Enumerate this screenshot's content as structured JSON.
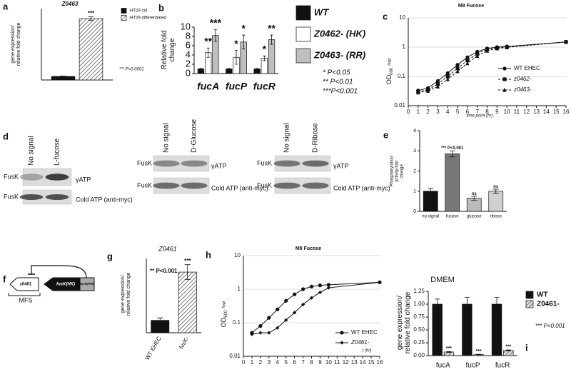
{
  "chart_data": [
    {
      "panel": "a",
      "type": "bar",
      "title": "Z0463",
      "ylabel": [
        "gene expression/",
        "relative fold change"
      ],
      "categories": [
        null
      ],
      "series": [
        {
          "name": "HT29 ctrl",
          "color": "#111111",
          "values": [
            1
          ],
          "errors": [
            0.1
          ]
        },
        {
          "name": "HT29 differentiated",
          "color": "#ffffff",
          "hatch": true,
          "values": [
            17.2
          ],
          "errors": [
            0.5
          ]
        }
      ],
      "ylim": [
        0,
        20
      ],
      "annotations": [
        {
          "text": "***",
          "category": 0,
          "series": 1
        }
      ],
      "notes": [
        "*** P<0.0001"
      ]
    },
    {
      "panel": "b",
      "type": "bar",
      "ylabel": [
        "Relative fold",
        "change"
      ],
      "categories": [
        "fucA",
        "fucP",
        "fucR"
      ],
      "series": [
        {
          "name": "WT",
          "color": "#111111",
          "values": [
            1,
            1,
            1
          ],
          "errors": [
            0.1,
            0.1,
            0.1
          ]
        },
        {
          "name": "Z0462- (HK)",
          "color": "#ffffff",
          "values": [
            4.5,
            3.5,
            3.3
          ],
          "errors": [
            1,
            1.5,
            0.5
          ]
        },
        {
          "name": "Z0463- (RR)",
          "color": "#bfbfbf",
          "values": [
            8.2,
            6.8,
            7.3
          ],
          "errors": [
            1.3,
            1.5,
            1
          ]
        }
      ],
      "ylim": [
        0,
        10
      ],
      "yticks": [
        0,
        2,
        4,
        6,
        8,
        10
      ],
      "annotations": [
        {
          "text": "**",
          "category": 0,
          "series": 1
        },
        {
          "text": "***",
          "category": 0,
          "series": 2
        },
        {
          "text": "*",
          "category": 1,
          "series": 1
        },
        {
          "text": "*",
          "category": 1,
          "series": 2
        },
        {
          "text": "*",
          "category": 2,
          "series": 1
        },
        {
          "text": "**",
          "category": 2,
          "series": 2
        }
      ],
      "notes": [
        "*  P<0.05",
        "** P<0.01",
        "***P<0.001"
      ]
    },
    {
      "panel": "c",
      "type": "line",
      "title": "M9 Fucose",
      "xlabel": "time point (hr)",
      "ylabel": {
        "text": "OD",
        "sub": "600",
        "note": "(log)"
      },
      "ylog": true,
      "x": [
        1,
        2,
        3,
        4,
        5,
        6,
        7,
        8,
        9,
        10,
        16
      ],
      "series": [
        {
          "name": "WT EHEC",
          "color": "#111111",
          "marker": "circle",
          "values": [
            0.033,
            0.04,
            0.07,
            0.13,
            0.25,
            0.45,
            0.7,
            0.9,
            1.0,
            1.05,
            1.5
          ]
        },
        {
          "name": "z0462-",
          "color": "#111111",
          "marker": "square",
          "dash": true,
          "values": [
            0.03,
            0.035,
            0.055,
            0.1,
            0.19,
            0.35,
            0.6,
            0.85,
            0.95,
            1.0,
            1.5
          ]
        },
        {
          "name": "z0463-",
          "color": "#111111",
          "marker": "triangle",
          "dash": true,
          "values": [
            0.028,
            0.032,
            0.045,
            0.08,
            0.15,
            0.28,
            0.5,
            0.75,
            0.9,
            0.98,
            1.5
          ]
        }
      ],
      "xlim": [
        0,
        16
      ],
      "xticks": [
        0,
        1,
        2,
        3,
        4,
        5,
        6,
        7,
        8,
        9,
        10,
        11,
        12,
        13,
        14,
        15,
        16
      ],
      "ylim": [
        0.01,
        10
      ],
      "yticks": [
        0.01,
        0.1,
        1,
        10
      ],
      "grid": true
    },
    {
      "panel": "e",
      "type": "bar",
      "ylabel": [
        "Phosphorylation",
        "activity-fold",
        "change"
      ],
      "categories": [
        "no signal",
        "fucose",
        "glucose",
        "ribose"
      ],
      "values": [
        1,
        2.85,
        0.65,
        1.0
      ],
      "errors": [
        0.15,
        0.15,
        0.1,
        0.1
      ],
      "colors": [
        "#111111",
        "#777777",
        "#bbbbbb",
        "#d0d0d0"
      ],
      "ylim": [
        0,
        4
      ],
      "yticks": [
        0,
        1,
        2,
        3,
        4
      ],
      "annotations": [
        {
          "text": "*** P<0.001",
          "category": 1
        },
        {
          "text": "ns",
          "category": 2
        },
        {
          "text": "ns",
          "category": 3
        }
      ]
    },
    {
      "panel": "g",
      "type": "bar",
      "title": "Z0461",
      "ylabel": [
        "gene expression/",
        "relative fold change"
      ],
      "categories": [
        "WT EHEC",
        "fusK-"
      ],
      "values": [
        1,
        4.9
      ],
      "errors": [
        0.2,
        0.6
      ],
      "colors": [
        "#111111",
        "#ffffff"
      ],
      "hatch": [
        false,
        true
      ],
      "ylim": [
        0,
        6
      ],
      "annotations": [
        {
          "text": "***",
          "category": 1
        }
      ],
      "notes": [
        "** P<0.001"
      ]
    },
    {
      "panel": "h",
      "type": "line",
      "title": "M9 Fucose",
      "xlabel": "t (hr)",
      "ylabel": {
        "text": "OD",
        "sub": "600",
        "note": "(log)"
      },
      "ylog": true,
      "x": [
        1,
        2,
        3,
        4,
        5,
        6,
        7,
        8,
        9,
        10,
        16
      ],
      "series": [
        {
          "name": "WT EHEC",
          "color": "#111111",
          "marker": "circle",
          "values": [
            0.05,
            0.08,
            0.14,
            0.25,
            0.45,
            0.7,
            1.0,
            1.2,
            1.3,
            1.35,
            1.6
          ]
        },
        {
          "name": "Z0461-",
          "color": "#111111",
          "marker": "diamond",
          "values": [
            0.045,
            0.05,
            0.05,
            0.07,
            0.12,
            0.2,
            0.35,
            0.55,
            0.8,
            1.1,
            1.6
          ]
        }
      ],
      "xlim": [
        0,
        16
      ],
      "xticks": [
        0,
        1,
        2,
        3,
        4,
        5,
        6,
        7,
        8,
        9,
        10,
        11,
        12,
        13,
        14,
        15,
        16
      ],
      "ylim": [
        0.01,
        10
      ],
      "yticks": [
        0.01,
        0.1,
        1,
        10
      ],
      "grid": true
    },
    {
      "panel": "i",
      "type": "bar",
      "title": "DMEM",
      "ylabel": [
        "gene expression/",
        "relative fold change"
      ],
      "categories": [
        "fucA",
        "fucP",
        "fucR"
      ],
      "series": [
        {
          "name": "WT",
          "color": "#111111",
          "values": [
            1,
            1,
            1
          ],
          "errors": [
            0.1,
            0.13,
            0.13
          ]
        },
        {
          "name": "Z0461-",
          "color": "#dddddd",
          "hatch": true,
          "values": [
            0.07,
            0.02,
            0.1
          ],
          "errors": [
            0.01,
            0.005,
            0.01
          ]
        }
      ],
      "ylim": [
        0,
        1.25
      ],
      "yticks": [
        {
          "value": 0,
          "label": "0.00"
        },
        {
          "value": 0.25,
          "label": "0.25"
        },
        {
          "value": 0.5,
          "label": "0.50"
        },
        {
          "value": 0.75,
          "label": "0.75"
        },
        {
          "value": 1,
          "label": "1.00"
        },
        {
          "value": 1.25,
          "label": "1.25"
        }
      ],
      "annotations": [
        {
          "text": "***",
          "category": 0,
          "series": 1
        },
        {
          "text": "***",
          "category": 1,
          "series": 1
        },
        {
          "text": "***",
          "category": 2,
          "series": 1
        }
      ],
      "notes": [
        "*** P<0.001"
      ]
    }
  ],
  "blots": {
    "panel": "d",
    "items": [
      {
        "lanes": [
          "No signal",
          "L-fucose"
        ],
        "rows": [
          {
            "left": "FusK",
            "right": "γATP"
          },
          {
            "left": "FusK",
            "right": "Cold ATP (anti-myc)"
          }
        ]
      },
      {
        "lanes": [
          "No signal",
          "D-Glucose"
        ],
        "rows": [
          {
            "left": "FusK",
            "right": "γATP"
          },
          {
            "left": "FusK",
            "right": "Cold ATP (anti-myc)"
          }
        ]
      },
      {
        "lanes": [
          "No signal",
          "D-Ribose"
        ],
        "rows": [
          {
            "left": "FusK",
            "right": "γATP"
          },
          {
            "left": "FusK",
            "right": "Cold ATP (anti-myc)"
          }
        ]
      }
    ]
  },
  "diagram": {
    "panel": "f",
    "genes": [
      "z0461",
      "fusK(HK)",
      "fusR(RR)"
    ],
    "label": "MFS"
  }
}
